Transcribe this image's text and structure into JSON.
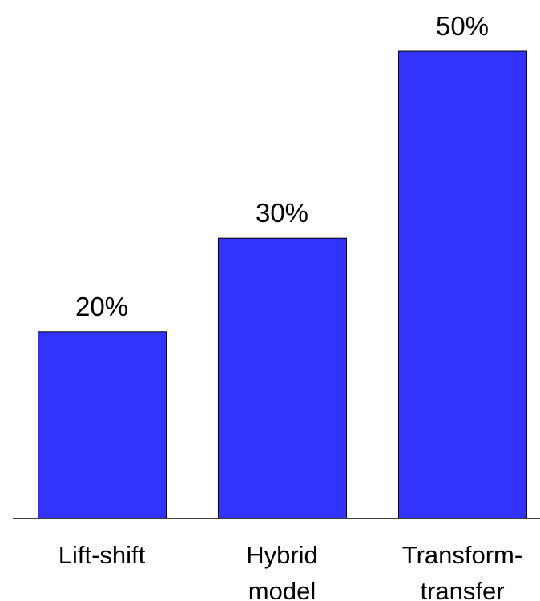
{
  "chart_data": {
    "type": "bar",
    "categories": [
      [
        "Lift-shift"
      ],
      [
        "Hybrid",
        "model"
      ],
      [
        "Transform-",
        "transfer"
      ]
    ],
    "values": [
      20,
      30,
      50
    ],
    "data_labels": [
      "20%",
      "30%",
      "50%"
    ],
    "title": "",
    "xlabel": "",
    "ylabel": "",
    "ylim": [
      0,
      50
    ],
    "grid": false,
    "legend": "none",
    "bar_color": "#3333ff"
  }
}
